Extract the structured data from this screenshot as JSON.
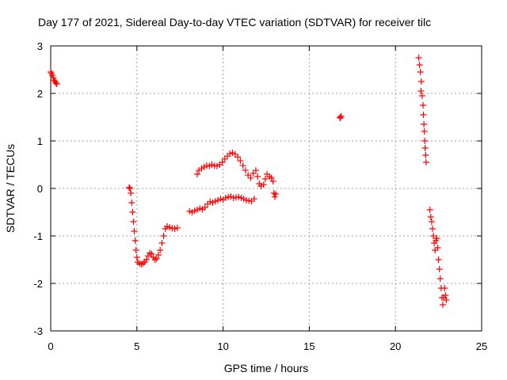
{
  "chart_data": {
    "type": "scatter",
    "title": "Day 177 of 2021, Sidereal Day-to-day VTEC variation (SDTVAR) for receiver tilc",
    "xlabel": "GPS time / hours",
    "ylabel": "SDTVAR / TECUs",
    "xlim": [
      0,
      25
    ],
    "ylim": [
      -3,
      3
    ],
    "xticks": [
      0,
      5,
      10,
      15,
      20,
      25
    ],
    "yticks": [
      -3,
      -2,
      -1,
      0,
      1,
      2,
      3
    ],
    "grid": true,
    "marker": "+",
    "color": "#ff0000",
    "series": [
      {
        "name": "SDTVAR",
        "points": [
          [
            0.0,
            2.45
          ],
          [
            0.05,
            2.42
          ],
          [
            0.1,
            2.38
          ],
          [
            0.15,
            2.33
          ],
          [
            0.2,
            2.28
          ],
          [
            0.25,
            2.25
          ],
          [
            0.3,
            2.22
          ],
          [
            0.35,
            2.2
          ],
          [
            4.55,
            0.02
          ],
          [
            4.6,
            0.0
          ],
          [
            4.65,
            -0.1
          ],
          [
            4.7,
            -0.3
          ],
          [
            4.75,
            -0.5
          ],
          [
            4.8,
            -0.7
          ],
          [
            4.85,
            -0.9
          ],
          [
            4.9,
            -1.1
          ],
          [
            4.95,
            -1.3
          ],
          [
            5.0,
            -1.45
          ],
          [
            5.05,
            -1.55
          ],
          [
            5.15,
            -1.58
          ],
          [
            5.25,
            -1.6
          ],
          [
            5.35,
            -1.58
          ],
          [
            5.45,
            -1.55
          ],
          [
            5.55,
            -1.5
          ],
          [
            5.65,
            -1.42
          ],
          [
            5.75,
            -1.36
          ],
          [
            5.85,
            -1.38
          ],
          [
            5.95,
            -1.45
          ],
          [
            6.05,
            -1.5
          ],
          [
            6.15,
            -1.48
          ],
          [
            6.25,
            -1.4
          ],
          [
            6.35,
            -1.3
          ],
          [
            6.45,
            -1.15
          ],
          [
            6.55,
            -1.0
          ],
          [
            6.65,
            -0.85
          ],
          [
            6.75,
            -0.8
          ],
          [
            6.9,
            -0.82
          ],
          [
            7.05,
            -0.84
          ],
          [
            7.2,
            -0.85
          ],
          [
            7.35,
            -0.83
          ],
          [
            8.05,
            -0.48
          ],
          [
            8.2,
            -0.5
          ],
          [
            8.35,
            -0.47
          ],
          [
            8.5,
            -0.45
          ],
          [
            8.65,
            -0.42
          ],
          [
            8.8,
            -0.44
          ],
          [
            8.95,
            -0.4
          ],
          [
            9.1,
            -0.33
          ],
          [
            9.25,
            -0.28
          ],
          [
            9.4,
            -0.3
          ],
          [
            9.55,
            -0.27
          ],
          [
            9.7,
            -0.25
          ],
          [
            9.85,
            -0.22
          ],
          [
            10.0,
            -0.24
          ],
          [
            10.15,
            -0.2
          ],
          [
            10.3,
            -0.18
          ],
          [
            10.45,
            -0.17
          ],
          [
            10.6,
            -0.2
          ],
          [
            10.75,
            -0.19
          ],
          [
            10.9,
            -0.18
          ],
          [
            11.05,
            -0.2
          ],
          [
            11.2,
            -0.22
          ],
          [
            11.35,
            -0.25
          ],
          [
            11.5,
            -0.26
          ],
          [
            11.65,
            -0.27
          ],
          [
            11.8,
            -0.22
          ],
          [
            8.5,
            0.3
          ],
          [
            8.6,
            0.38
          ],
          [
            8.75,
            0.42
          ],
          [
            8.9,
            0.45
          ],
          [
            9.05,
            0.48
          ],
          [
            9.2,
            0.47
          ],
          [
            9.35,
            0.5
          ],
          [
            9.5,
            0.48
          ],
          [
            9.65,
            0.47
          ],
          [
            9.8,
            0.5
          ],
          [
            9.95,
            0.55
          ],
          [
            10.1,
            0.62
          ],
          [
            10.25,
            0.68
          ],
          [
            10.4,
            0.73
          ],
          [
            10.55,
            0.75
          ],
          [
            10.7,
            0.72
          ],
          [
            10.85,
            0.66
          ],
          [
            11.0,
            0.58
          ],
          [
            11.15,
            0.48
          ],
          [
            11.3,
            0.38
          ],
          [
            11.45,
            0.28
          ],
          [
            11.6,
            0.22
          ],
          [
            11.75,
            0.32
          ],
          [
            11.9,
            0.38
          ],
          [
            12.0,
            0.25
          ],
          [
            12.1,
            0.1
          ],
          [
            12.2,
            0.05
          ],
          [
            12.35,
            0.08
          ],
          [
            12.45,
            0.2
          ],
          [
            12.55,
            0.3
          ],
          [
            12.7,
            0.25
          ],
          [
            12.8,
            0.22
          ],
          [
            12.9,
            0.15
          ],
          [
            12.95,
            -0.1
          ],
          [
            13.0,
            -0.18
          ],
          [
            13.05,
            -0.12
          ],
          [
            16.8,
            1.48
          ],
          [
            16.85,
            1.52
          ],
          [
            16.78,
            1.5
          ],
          [
            21.35,
            2.75
          ],
          [
            21.4,
            2.6
          ],
          [
            21.45,
            2.45
          ],
          [
            21.5,
            2.25
          ],
          [
            21.48,
            2.05
          ],
          [
            21.55,
            1.95
          ],
          [
            21.6,
            1.75
          ],
          [
            21.62,
            1.55
          ],
          [
            21.65,
            1.35
          ],
          [
            21.68,
            1.2
          ],
          [
            21.7,
            1.0
          ],
          [
            21.72,
            0.85
          ],
          [
            21.75,
            0.7
          ],
          [
            21.78,
            0.55
          ],
          [
            22.0,
            -0.45
          ],
          [
            22.05,
            -0.6
          ],
          [
            22.1,
            -0.7
          ],
          [
            22.15,
            -0.85
          ],
          [
            22.2,
            -1.0
          ],
          [
            22.25,
            -1.15
          ],
          [
            22.3,
            -1.3
          ],
          [
            22.35,
            -1.1
          ],
          [
            22.4,
            -1.05
          ],
          [
            22.45,
            -1.25
          ],
          [
            22.5,
            -1.5
          ],
          [
            22.55,
            -1.7
          ],
          [
            22.6,
            -1.9
          ],
          [
            22.65,
            -2.1
          ],
          [
            22.7,
            -2.3
          ],
          [
            22.75,
            -2.45
          ],
          [
            22.8,
            -2.3
          ],
          [
            22.85,
            -2.1
          ],
          [
            22.9,
            -2.25
          ],
          [
            22.95,
            -2.35
          ]
        ]
      }
    ]
  }
}
